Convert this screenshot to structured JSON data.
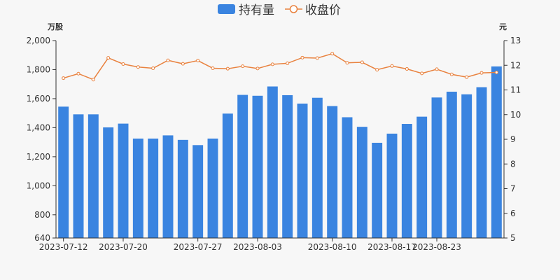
{
  "legend": {
    "bar_label": "持有量",
    "line_label": "收盘价"
  },
  "chart_data": {
    "type": "bar",
    "x_tick_labels": [
      "2023-07-12",
      "2023-07-20",
      "2023-07-27",
      "2023-08-03",
      "2023-08-10",
      "2023-08-17",
      "2023-08-23"
    ],
    "x_tick_indices": [
      0,
      4,
      9,
      13,
      18,
      22,
      25
    ],
    "y_left": {
      "unit": "万股",
      "min": 640,
      "max": 2000,
      "ticks": [
        640,
        800,
        1000,
        1200,
        1400,
        1600,
        1800,
        2000
      ],
      "tick_labels": [
        "640",
        "800",
        "1,000",
        "1,200",
        "1,400",
        "1,600",
        "1,800",
        "2,000"
      ]
    },
    "y_right": {
      "unit": "元",
      "min": 5,
      "max": 13,
      "ticks": [
        5,
        6,
        7,
        8,
        9,
        10,
        11,
        12,
        13
      ],
      "tick_labels": [
        "5",
        "6",
        "7",
        "8",
        "9",
        "10",
        "11",
        "12",
        "13"
      ]
    },
    "series": [
      {
        "name": "持有量",
        "type": "bar",
        "axis": "left",
        "color": "#3a84e0",
        "values": [
          1545,
          1492,
          1492,
          1402,
          1428,
          1325,
          1325,
          1347,
          1316,
          1280,
          1325,
          1497,
          1626,
          1620,
          1684,
          1624,
          1566,
          1606,
          1549,
          1472,
          1406,
          1296,
          1359,
          1426,
          1476,
          1608,
          1648,
          1630,
          1679,
          1822
        ]
      },
      {
        "name": "收盘价",
        "type": "line",
        "axis": "right",
        "color": "#e9823f",
        "values": [
          11.48,
          11.66,
          11.42,
          12.3,
          12.05,
          11.93,
          11.88,
          12.2,
          12.06,
          12.19,
          11.88,
          11.86,
          11.96,
          11.87,
          12.04,
          12.08,
          12.31,
          12.29,
          12.47,
          12.1,
          12.12,
          11.82,
          11.97,
          11.85,
          11.67,
          11.84,
          11.63,
          11.52,
          11.69,
          11.71
        ]
      }
    ]
  }
}
